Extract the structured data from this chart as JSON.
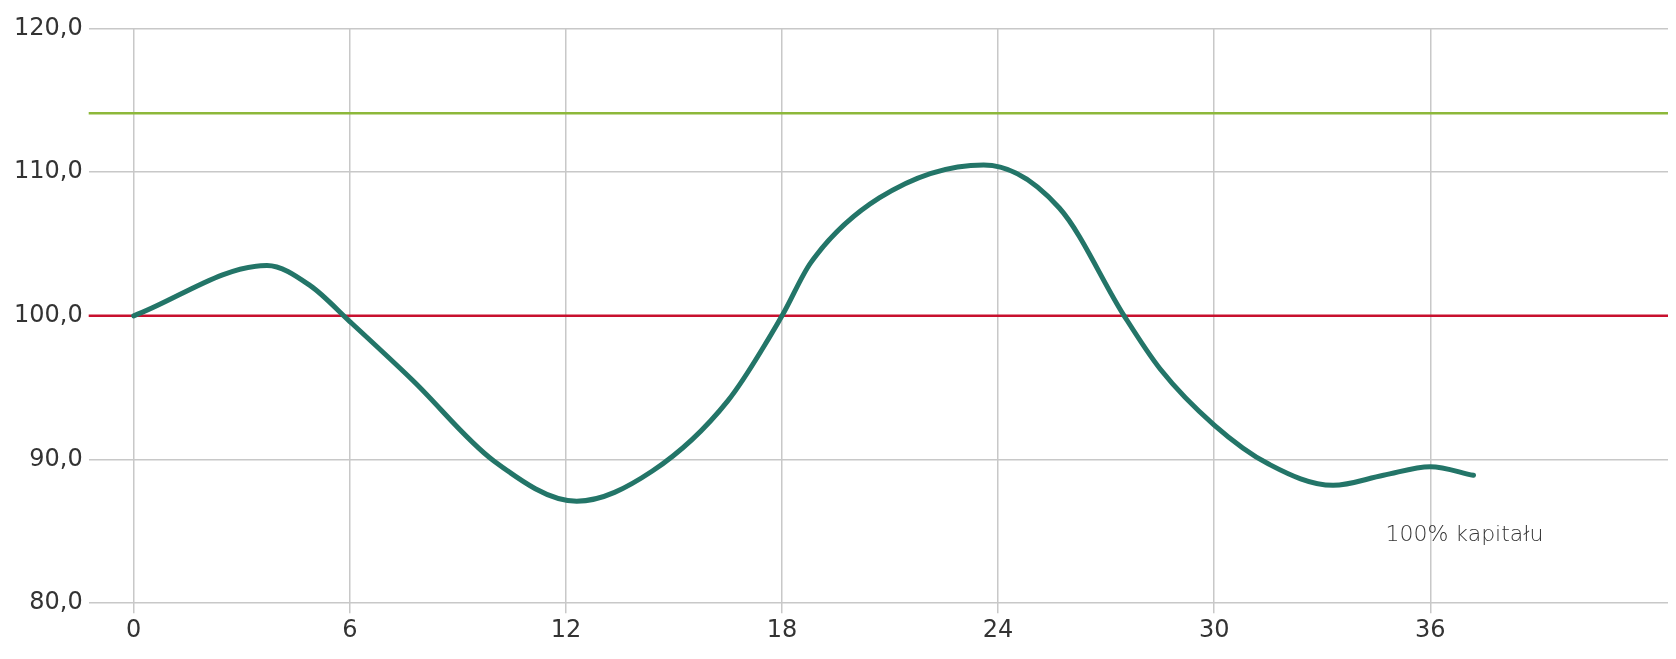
{
  "chart_data": {
    "type": "line",
    "x": [
      0,
      3.7,
      4.9,
      6,
      7.75,
      10,
      12.3,
      14.4,
      16.5,
      18,
      18.8,
      20.7,
      23.6,
      25.7,
      27.5,
      28.5,
      30,
      31.5,
      33.3,
      34.7,
      36,
      37.2
    ],
    "series": [
      {
        "name": "100% kapitału",
        "color": "#237568",
        "values": [
          100,
          103.5,
          102.1,
          99.6,
          95.5,
          89.9,
          87.1,
          89.2,
          94.1,
          100,
          103.7,
          108.2,
          110.5,
          107.5,
          100,
          96.3,
          92.4,
          89.7,
          88.2,
          88.9,
          89.5,
          88.9
        ]
      }
    ],
    "xlim": [
      -1.25,
      42.6
    ],
    "xticks": [
      0,
      6,
      12,
      18,
      24,
      30,
      36
    ],
    "ylim": [
      80,
      120
    ],
    "yticks": [
      {
        "value": 80,
        "label": "80,0"
      },
      {
        "value": 90,
        "label": "90,0"
      },
      {
        "value": 100,
        "label": "100,0"
      },
      {
        "value": 110,
        "label": "110,0"
      },
      {
        "value": 120,
        "label": "120,0"
      }
    ],
    "ref_lines": [
      {
        "axis": "y",
        "value": 114.1,
        "color": "#8db83a"
      },
      {
        "axis": "y",
        "value": 100,
        "color": "#c8102e"
      }
    ],
    "grid": true,
    "legend": false,
    "marker": "none",
    "line_style": "solid"
  }
}
